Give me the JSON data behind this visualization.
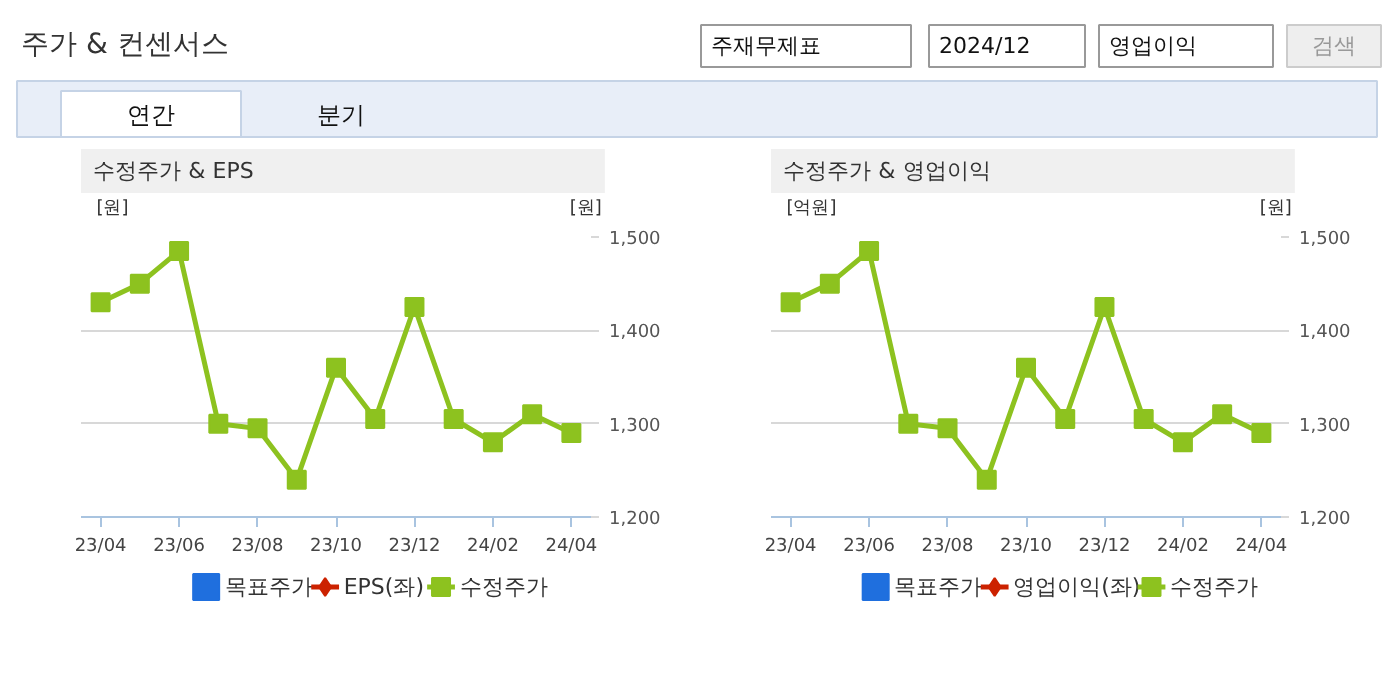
{
  "chart_data": [
    {
      "type": "line",
      "title": "수정주가 & EPS",
      "ylabel": "[원]",
      "y2label": "[원]",
      "annotations": [
        "주가 & 컨센서스",
        "주재무제표",
        "2024/12",
        "영업이익",
        "검색",
        "연간",
        "분기"
      ],
      "categories": [
        "23/04",
        null,
        "23/06",
        null,
        "23/08",
        null,
        "23/10",
        null,
        "23/12",
        null,
        "24/02",
        null,
        "24/04"
      ],
      "y2lim": [
        1200,
        1500
      ],
      "y2ticks": [
        {
          "value": 1200,
          "label": "1,200"
        },
        {
          "value": 1300,
          "label": "1,300"
        },
        {
          "value": 1400,
          "label": "1,400"
        },
        {
          "value": 1500,
          "label": "1,500"
        }
      ],
      "grid": "y",
      "legend": "bottom",
      "tick_labels": "x",
      "series": [
        {
          "name": "목표주가",
          "type": "scatter",
          "marker": "square",
          "color": "#1f6fde",
          "values": [
            null,
            null,
            null,
            null,
            null,
            null,
            null,
            null,
            null,
            null,
            null,
            null,
            null
          ]
        },
        {
          "name": "EPS(좌)",
          "type": "line",
          "marker": "diamond",
          "color": "#cc2200",
          "values": [
            null,
            null,
            null,
            null,
            null,
            null,
            null,
            null,
            null,
            null,
            null,
            null,
            null
          ]
        },
        {
          "name": "수정주가",
          "type": "line",
          "marker": "square",
          "color": "#8dc21f",
          "axis": "y2",
          "values": [
            1430,
            1450,
            1485,
            1300,
            1295,
            1240,
            1360,
            1305,
            1425,
            1305,
            1280,
            1310,
            1290
          ]
        }
      ]
    },
    {
      "type": "line",
      "title": "수정주가 & 영업이익",
      "ylabel": "[억원]",
      "y2label": "[원]",
      "categories": [
        "23/04",
        null,
        "23/06",
        null,
        "23/08",
        null,
        "23/10",
        null,
        "23/12",
        null,
        "24/02",
        null,
        "24/04"
      ],
      "y2lim": [
        1200,
        1500
      ],
      "y2ticks": [
        {
          "value": 1200,
          "label": "1,200"
        },
        {
          "value": 1300,
          "label": "1,300"
        },
        {
          "value": 1400,
          "label": "1,400"
        },
        {
          "value": 1500,
          "label": "1,500"
        }
      ],
      "grid": "y",
      "legend": "bottom",
      "tick_labels": "x",
      "series": [
        {
          "name": "목표주가",
          "type": "scatter",
          "marker": "square",
          "color": "#1f6fde",
          "values": [
            null,
            null,
            null,
            null,
            null,
            null,
            null,
            null,
            null,
            null,
            null,
            null,
            null
          ]
        },
        {
          "name": "영업이익(좌)",
          "type": "line",
          "marker": "diamond",
          "color": "#cc2200",
          "values": [
            null,
            null,
            null,
            null,
            null,
            null,
            null,
            null,
            null,
            null,
            null,
            null,
            null
          ]
        },
        {
          "name": "수정주가",
          "type": "line",
          "marker": "square",
          "color": "#8dc21f",
          "axis": "y2",
          "values": [
            1430,
            1450,
            1485,
            1300,
            1295,
            1240,
            1360,
            1305,
            1425,
            1305,
            1280,
            1310,
            1290
          ]
        }
      ]
    }
  ]
}
